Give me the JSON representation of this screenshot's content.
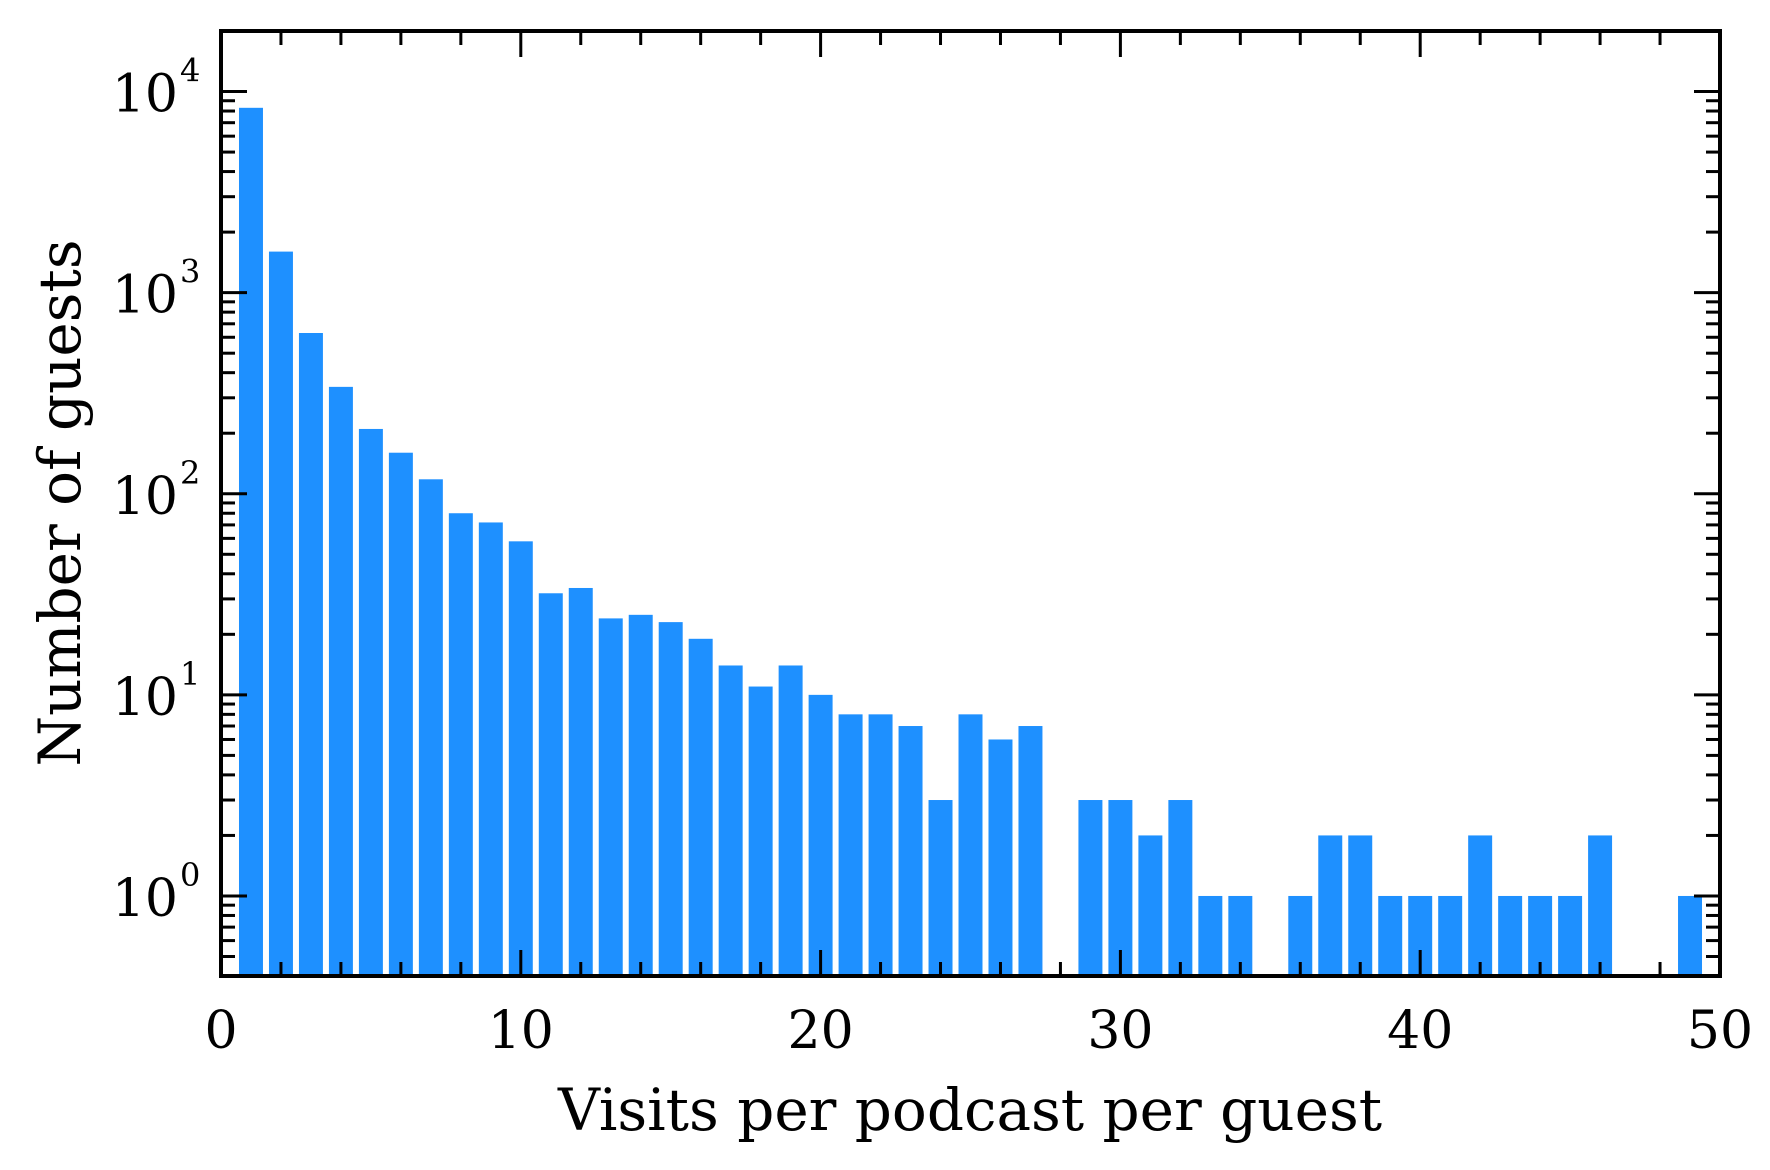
{
  "chart_data": {
    "type": "bar",
    "xlabel": "Visits per podcast per guest",
    "ylabel": "Number of guests",
    "yscale": "log",
    "xlim": [
      0,
      50
    ],
    "ylim": [
      0.4,
      20000
    ],
    "grid": false,
    "bar_color": "#1E90FF",
    "x_ticks": [
      {
        "value": 0,
        "label": "0"
      },
      {
        "value": 10,
        "label": "10"
      },
      {
        "value": 20,
        "label": "20"
      },
      {
        "value": 30,
        "label": "30"
      },
      {
        "value": 40,
        "label": "40"
      },
      {
        "value": 50,
        "label": "50"
      }
    ],
    "y_ticks": [
      {
        "value": 1,
        "base": "10",
        "exp": "0"
      },
      {
        "value": 10,
        "base": "10",
        "exp": "1"
      },
      {
        "value": 100,
        "base": "10",
        "exp": "2"
      },
      {
        "value": 1000,
        "base": "10",
        "exp": "3"
      },
      {
        "value": 10000,
        "base": "10",
        "exp": "4"
      }
    ],
    "x": [
      1,
      2,
      3,
      4,
      5,
      6,
      7,
      8,
      9,
      10,
      11,
      12,
      13,
      14,
      15,
      16,
      17,
      18,
      19,
      20,
      21,
      22,
      23,
      24,
      25,
      26,
      27,
      29,
      30,
      31,
      32,
      33,
      34,
      36,
      37,
      38,
      39,
      40,
      41,
      42,
      43,
      44,
      45,
      46,
      49
    ],
    "values": [
      8300,
      1600,
      630,
      340,
      210,
      160,
      118,
      80,
      72,
      58,
      32,
      34,
      24,
      25,
      23,
      19,
      14,
      11,
      14,
      10,
      8,
      8,
      7,
      3,
      8,
      6,
      7,
      3,
      3,
      2,
      3,
      1,
      1,
      1,
      2,
      2,
      1,
      1,
      1,
      2,
      1,
      1,
      1,
      2,
      1
    ]
  }
}
